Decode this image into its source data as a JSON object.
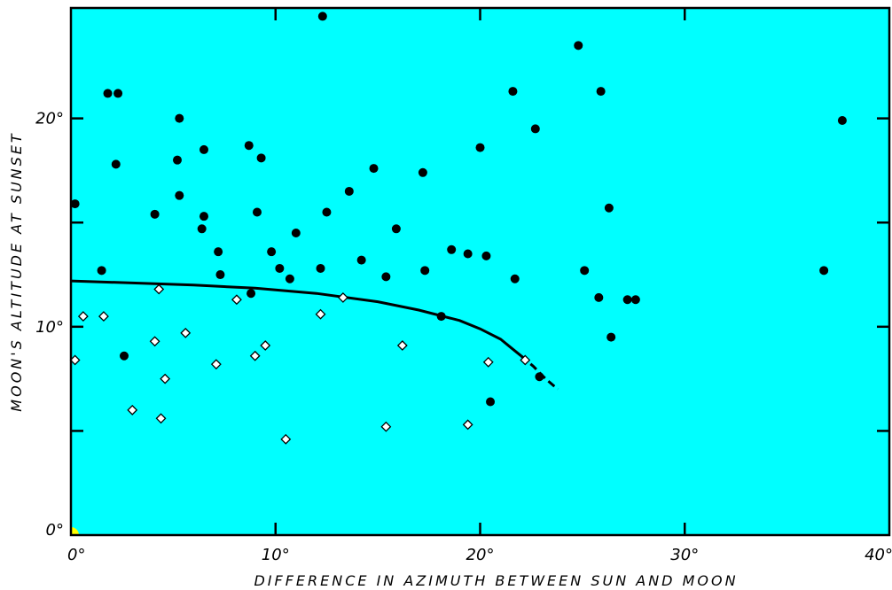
{
  "chart_data": {
    "type": "scatter",
    "title": "",
    "xlabel": "DIFFERENCE IN AZIMUTH BETWEEN SUN AND MOON",
    "ylabel": "MOON'S ALTITUDE AT SUNSET",
    "xlim": [
      0,
      40
    ],
    "ylim": [
      0,
      25.3
    ],
    "x_ticks": [
      0,
      10,
      20,
      30,
      40
    ],
    "x_tick_labels": [
      "0°",
      "10°",
      "20°",
      "30°",
      "40°"
    ],
    "y_ticks": [
      0,
      10,
      20
    ],
    "y_tick_labels": [
      "0°",
      "10°",
      "20°"
    ],
    "y_minor_ticks": [
      5,
      15
    ],
    "grid": false,
    "colors": {
      "plot_background": "#00ffff",
      "filled_marker": "#000000",
      "open_marker_fill": "#ffffff",
      "open_marker_stroke": "#000000",
      "curve": "#000000",
      "origin_marker": "#ffff00"
    },
    "series": [
      {
        "marker": "filled-circle",
        "points": [
          [
            0.2,
            15.9
          ],
          [
            1.5,
            12.7
          ],
          [
            1.8,
            21.2
          ],
          [
            2.3,
            21.2
          ],
          [
            2.2,
            17.8
          ],
          [
            2.6,
            8.6
          ],
          [
            4.1,
            15.4
          ],
          [
            5.2,
            18.0
          ],
          [
            5.3,
            20.0
          ],
          [
            5.3,
            16.3
          ],
          [
            6.4,
            14.7
          ],
          [
            6.5,
            18.5
          ],
          [
            6.5,
            15.3
          ],
          [
            7.2,
            13.6
          ],
          [
            7.3,
            12.5
          ],
          [
            8.7,
            18.7
          ],
          [
            8.8,
            11.6
          ],
          [
            9.1,
            15.5
          ],
          [
            9.3,
            18.1
          ],
          [
            9.8,
            13.6
          ],
          [
            10.2,
            12.8
          ],
          [
            10.7,
            12.3
          ],
          [
            11.0,
            14.5
          ],
          [
            12.2,
            12.8
          ],
          [
            12.3,
            24.9
          ],
          [
            12.5,
            15.5
          ],
          [
            13.6,
            16.5
          ],
          [
            14.2,
            13.2
          ],
          [
            14.8,
            17.6
          ],
          [
            15.4,
            12.4
          ],
          [
            15.9,
            14.7
          ],
          [
            17.2,
            17.4
          ],
          [
            17.3,
            12.7
          ],
          [
            18.1,
            10.5
          ],
          [
            18.6,
            13.7
          ],
          [
            19.4,
            13.5
          ],
          [
            20.0,
            18.6
          ],
          [
            20.3,
            13.4
          ],
          [
            20.5,
            6.4
          ],
          [
            21.6,
            21.3
          ],
          [
            21.7,
            12.3
          ],
          [
            22.7,
            19.5
          ],
          [
            22.9,
            7.6
          ],
          [
            24.8,
            23.5
          ],
          [
            25.1,
            12.7
          ],
          [
            25.8,
            11.4
          ],
          [
            25.9,
            21.3
          ],
          [
            26.3,
            15.7
          ],
          [
            26.4,
            9.5
          ],
          [
            27.2,
            11.3
          ],
          [
            27.6,
            11.3
          ],
          [
            36.8,
            12.7
          ],
          [
            37.7,
            19.9
          ]
        ]
      },
      {
        "marker": "open-diamond",
        "points": [
          [
            0.2,
            8.4
          ],
          [
            0.6,
            10.5
          ],
          [
            1.6,
            10.5
          ],
          [
            3.0,
            6.0
          ],
          [
            4.1,
            9.3
          ],
          [
            4.3,
            11.8
          ],
          [
            4.4,
            5.6
          ],
          [
            4.6,
            7.5
          ],
          [
            5.6,
            9.7
          ],
          [
            7.1,
            8.2
          ],
          [
            8.1,
            11.3
          ],
          [
            9.0,
            8.6
          ],
          [
            9.5,
            9.1
          ],
          [
            10.5,
            4.6
          ],
          [
            12.2,
            10.6
          ],
          [
            13.3,
            11.4
          ],
          [
            15.4,
            5.2
          ],
          [
            16.2,
            9.1
          ],
          [
            19.4,
            5.3
          ],
          [
            20.4,
            8.3
          ],
          [
            22.2,
            8.4
          ]
        ]
      }
    ],
    "curve": {
      "solid": [
        [
          0,
          12.2
        ],
        [
          3,
          12.1
        ],
        [
          6,
          12.0
        ],
        [
          9,
          11.85
        ],
        [
          12,
          11.6
        ],
        [
          15,
          11.2
        ],
        [
          17,
          10.8
        ],
        [
          19,
          10.3
        ],
        [
          20,
          9.9
        ],
        [
          21,
          9.4
        ],
        [
          21.5,
          9.0
        ],
        [
          22,
          8.6
        ]
      ],
      "dashed": [
        [
          22,
          8.6
        ],
        [
          22.6,
          8.1
        ],
        [
          23.2,
          7.5
        ],
        [
          23.8,
          7.0
        ]
      ]
    },
    "origin_marker": [
      0,
      0
    ]
  }
}
